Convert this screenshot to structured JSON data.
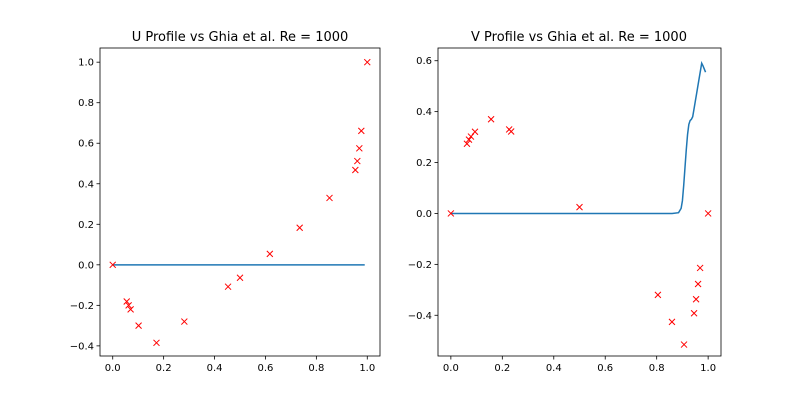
{
  "colors": {
    "line": "#1f77b4",
    "marker": "#ff0000"
  },
  "chart_data": [
    {
      "type": "line+scatter",
      "title": "U Profile vs Ghia et al. Re = 1000",
      "xlim": [
        -0.05,
        1.05
      ],
      "ylim": [
        -0.45,
        1.07
      ],
      "xticks": [
        0.0,
        0.2,
        0.4,
        0.6,
        0.8,
        1.0
      ],
      "yticks": [
        -0.4,
        -0.2,
        0.0,
        0.2,
        0.4,
        0.6,
        0.8,
        1.0
      ],
      "grid": false,
      "series": [
        {
          "kind": "line",
          "x": [
            0.0,
            0.1,
            0.2,
            0.3,
            0.4,
            0.5,
            0.6,
            0.7,
            0.8,
            0.9,
            0.99
          ],
          "y": [
            0.0,
            0.0,
            0.0,
            0.0,
            0.0,
            0.0,
            0.0,
            0.0,
            0.0,
            0.0,
            0.0
          ]
        },
        {
          "kind": "scatter",
          "marker": "x",
          "x": [
            0.0,
            0.055,
            0.0625,
            0.0703,
            0.1016,
            0.1719,
            0.2813,
            0.4531,
            0.5,
            0.6172,
            0.7344,
            0.8516,
            0.9531,
            0.9609,
            0.9688,
            0.9766,
            1.0
          ],
          "y": [
            0.0,
            -0.181,
            -0.2,
            -0.22,
            -0.3,
            -0.385,
            -0.28,
            -0.108,
            -0.064,
            0.054,
            0.183,
            0.33,
            0.468,
            0.512,
            0.575,
            0.661,
            1.0
          ]
        }
      ]
    },
    {
      "type": "line+scatter",
      "title": "V Profile vs Ghia et al. Re = 1000",
      "xlim": [
        -0.05,
        1.05
      ],
      "ylim": [
        -0.56,
        0.65
      ],
      "xticks": [
        0.0,
        0.2,
        0.4,
        0.6,
        0.8,
        1.0
      ],
      "yticks": [
        -0.4,
        -0.2,
        0.0,
        0.2,
        0.4,
        0.6
      ],
      "grid": false,
      "series": [
        {
          "kind": "line",
          "x": [
            0.0,
            0.1,
            0.2,
            0.3,
            0.4,
            0.5,
            0.6,
            0.7,
            0.8,
            0.86,
            0.885,
            0.895,
            0.9,
            0.905,
            0.91,
            0.915,
            0.92,
            0.925,
            0.93,
            0.935,
            0.94,
            0.945,
            0.95,
            0.955,
            0.96,
            0.965,
            0.97,
            0.975,
            0.98,
            0.99
          ],
          "y": [
            0.0,
            0.0,
            0.0,
            0.0,
            0.0,
            0.0,
            0.0,
            0.0,
            0.0,
            0.0,
            0.003,
            0.02,
            0.05,
            0.11,
            0.18,
            0.25,
            0.31,
            0.35,
            0.365,
            0.37,
            0.38,
            0.41,
            0.44,
            0.47,
            0.5,
            0.53,
            0.56,
            0.59,
            0.58,
            0.555
          ]
        },
        {
          "kind": "scatter",
          "marker": "x",
          "x": [
            0.0,
            0.0625,
            0.0703,
            0.0781,
            0.0938,
            0.1563,
            0.2266,
            0.2344,
            0.5,
            0.8047,
            0.8594,
            0.9063,
            0.9453,
            0.9531,
            0.9609,
            0.9688,
            1.0
          ],
          "y": [
            0.0,
            0.274,
            0.29,
            0.302,
            0.321,
            0.37,
            0.33,
            0.322,
            0.025,
            -0.32,
            -0.426,
            -0.515,
            -0.392,
            -0.337,
            -0.277,
            -0.214,
            0.0
          ]
        }
      ]
    }
  ]
}
